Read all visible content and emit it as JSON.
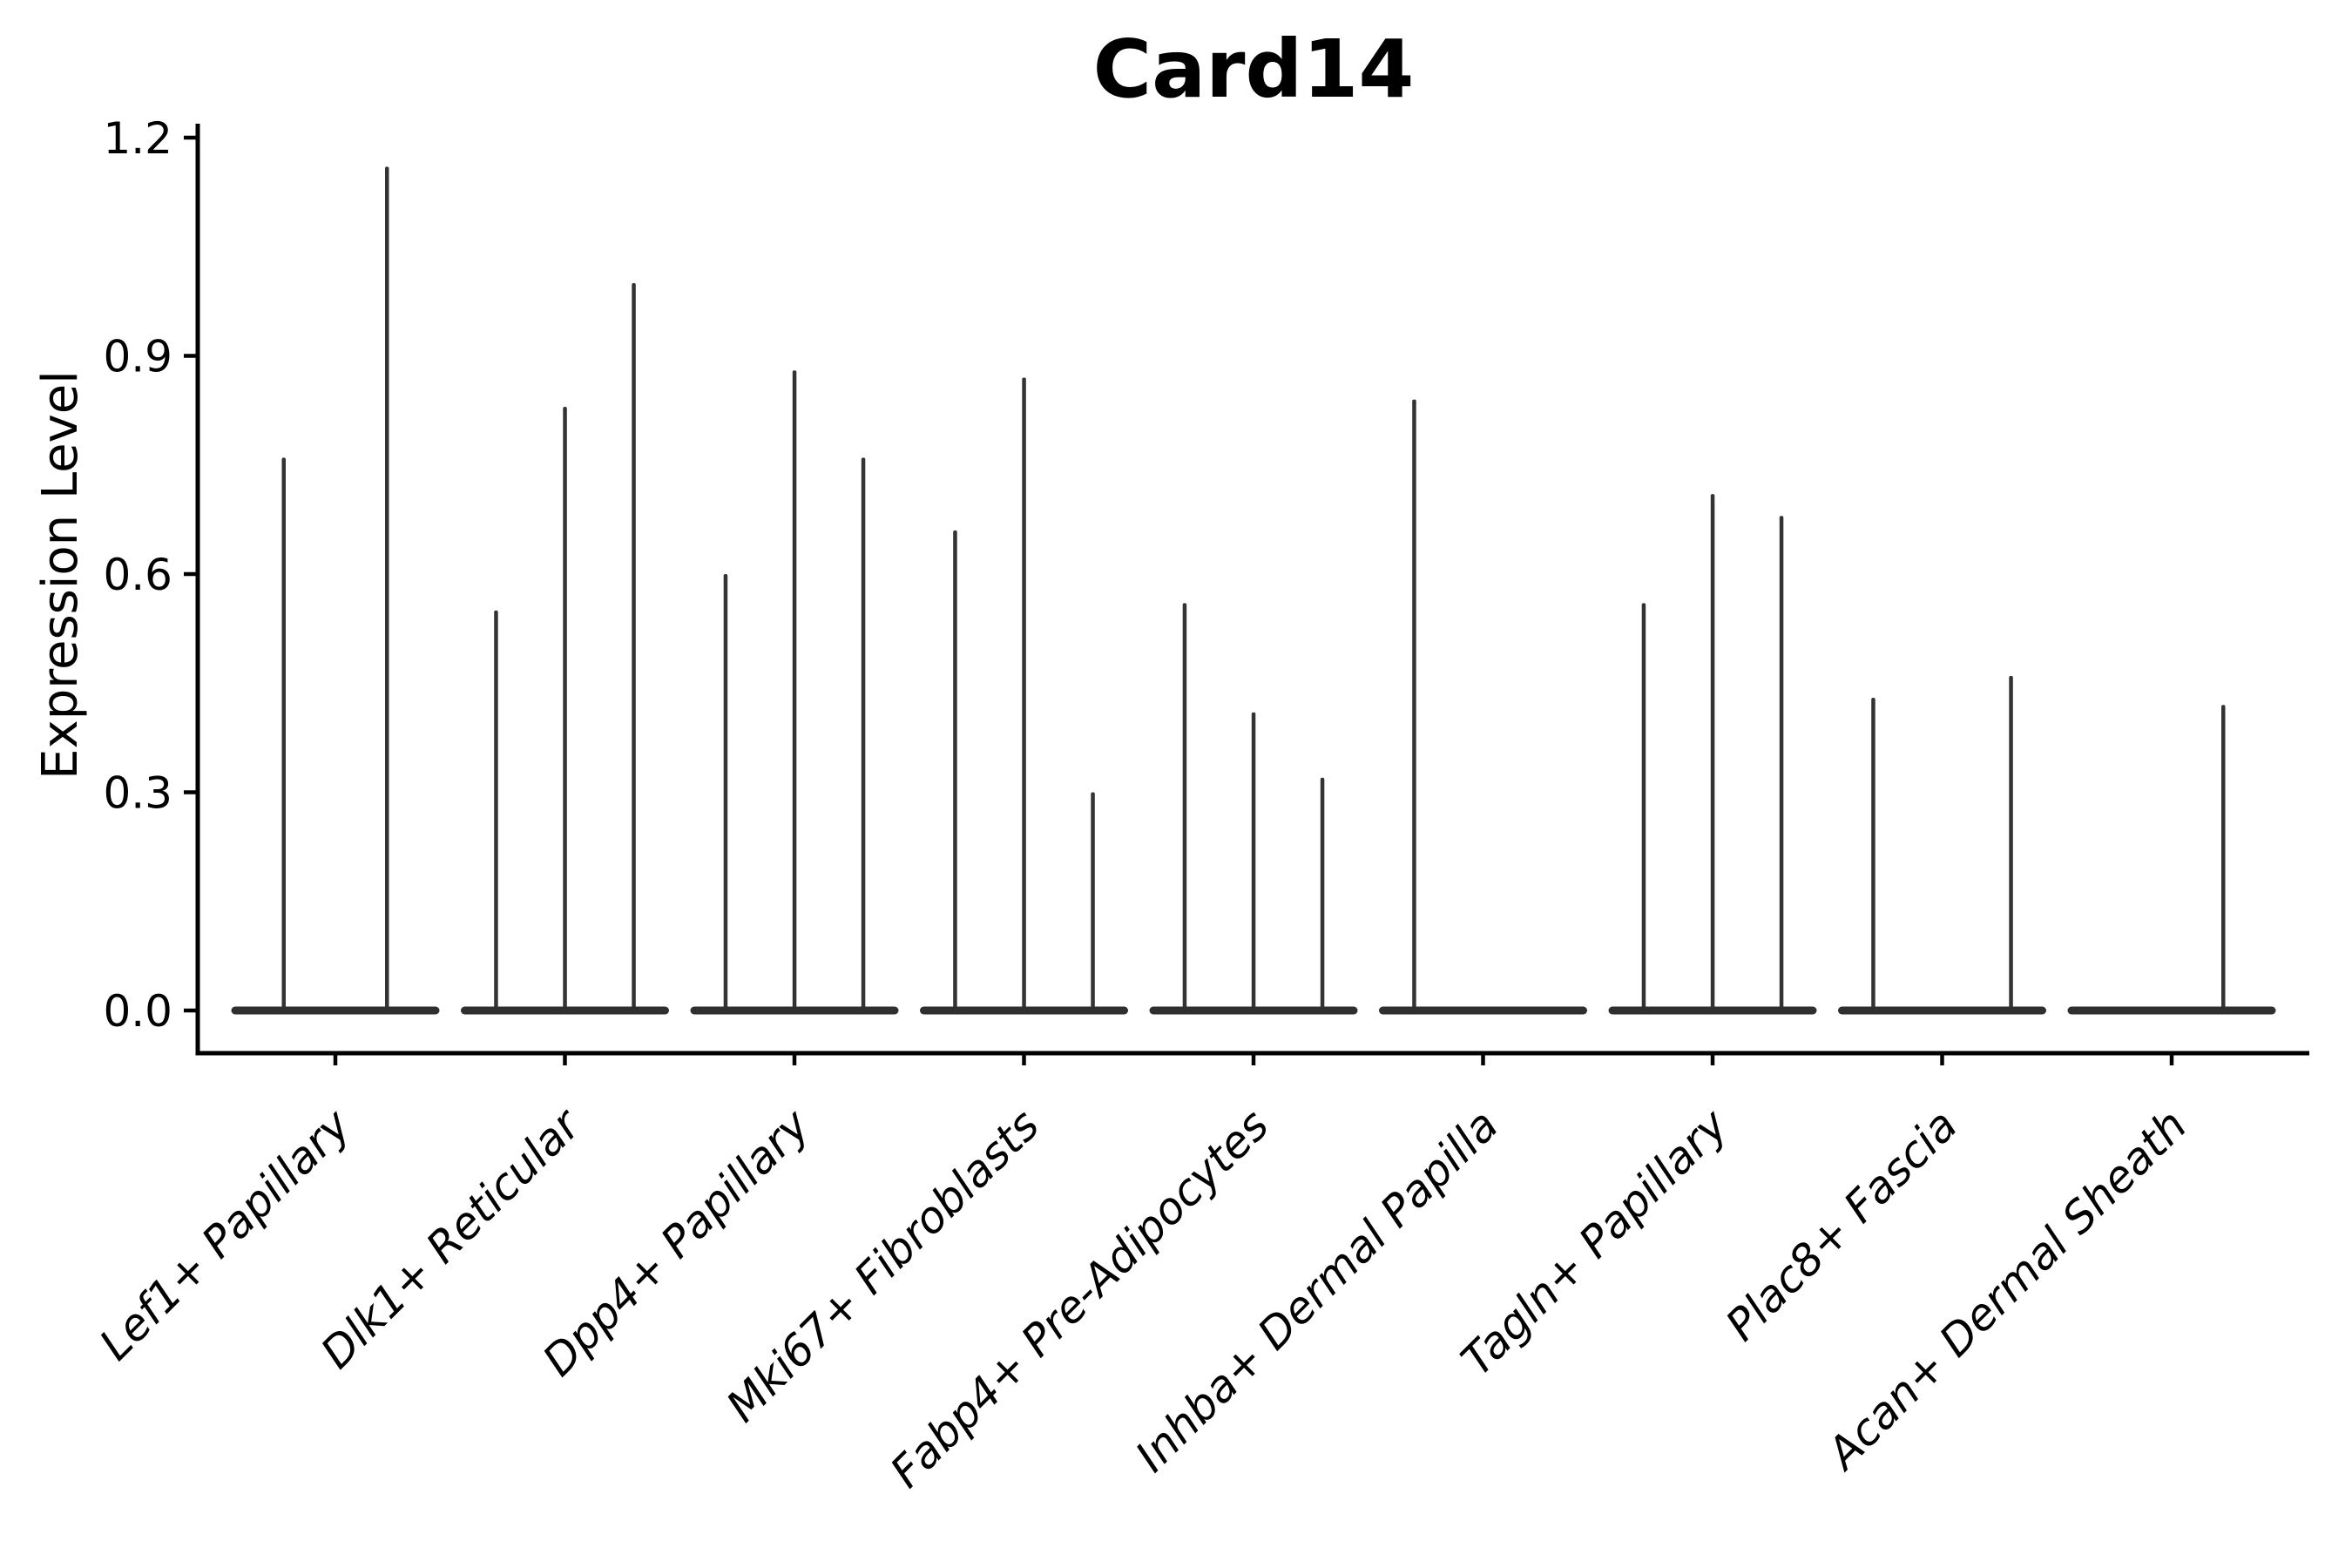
{
  "title": "Card14",
  "y_axis": {
    "label": "Expression Level",
    "tick_labels": [
      "0.0",
      "0.3",
      "0.6",
      "0.9",
      "1.2"
    ],
    "tick_values": [
      0.0,
      0.3,
      0.6,
      0.9,
      1.2
    ]
  },
  "x_axis": {
    "categories": [
      "Lef1+ Papillary",
      "Dlk1+ Reticular",
      "Dpp4+ Papillary",
      "Mki67+ Fibroblasts",
      "Fabp4+ Pre-Adipocytes",
      "Inhba+ Dermal Papilla",
      "Tagln+ Papillary",
      "Plac8+ Fascia",
      "Acan+ Dermal Sheath"
    ]
  },
  "colors": {
    "violin_spike": "#333333",
    "violin_base": "#2f2f2f",
    "axis": "#000000",
    "text": "#000000",
    "background": "#ffffff"
  },
  "chart_data": {
    "type": "violin",
    "title": "Card14",
    "xlabel": "",
    "ylabel": "Expression Level",
    "ylim": [
      -0.06,
      1.26
    ],
    "yticks": [
      0.0,
      0.3,
      0.6,
      0.9,
      1.2
    ],
    "grid": false,
    "legend": "none",
    "categories": [
      "Lef1+ Papillary",
      "Dlk1+ Reticular",
      "Dpp4+ Papillary",
      "Mki67+ Fibroblasts",
      "Fabp4+ Pre-Adipocytes",
      "Inhba+ Dermal Papilla",
      "Tagln+ Papillary",
      "Plac8+ Fascia",
      "Acan+ Dermal Sheath"
    ],
    "series": [
      {
        "category": "Lef1+ Papillary",
        "violins": [
          {
            "slot": -0.225,
            "max": 0.76
          },
          {
            "slot": 0.225,
            "max": 1.16
          }
        ]
      },
      {
        "category": "Dlk1+ Reticular",
        "violins": [
          {
            "slot": -0.3,
            "max": 0.55
          },
          {
            "slot": 0,
            "max": 0.83
          },
          {
            "slot": 0.3,
            "max": 1.0
          }
        ]
      },
      {
        "category": "Dpp4+ Papillary",
        "violins": [
          {
            "slot": -0.3,
            "max": 0.6
          },
          {
            "slot": 0,
            "max": 0.88
          },
          {
            "slot": 0.3,
            "max": 0.76
          }
        ]
      },
      {
        "category": "Mki67+ Fibroblasts",
        "violins": [
          {
            "slot": -0.3,
            "max": 0.66
          },
          {
            "slot": 0,
            "max": 0.87
          },
          {
            "slot": 0.3,
            "max": 0.3
          }
        ]
      },
      {
        "category": "Fabp4+ Pre-Adipocytes",
        "violins": [
          {
            "slot": -0.3,
            "max": 0.56
          },
          {
            "slot": 0,
            "max": 0.41
          },
          {
            "slot": 0.3,
            "max": 0.32
          }
        ]
      },
      {
        "category": "Inhba+ Dermal Papilla",
        "violins": [
          {
            "slot": -0.3,
            "max": 0.84
          }
        ]
      },
      {
        "category": "Tagln+ Papillary",
        "violins": [
          {
            "slot": -0.3,
            "max": 0.56
          },
          {
            "slot": 0,
            "max": 0.71
          },
          {
            "slot": 0.3,
            "max": 0.68
          }
        ]
      },
      {
        "category": "Plac8+ Fascia",
        "violins": [
          {
            "slot": -0.3,
            "max": 0.43
          },
          {
            "slot": 0.3,
            "max": 0.46
          }
        ]
      },
      {
        "category": "Acan+ Dermal Sheath",
        "violins": [
          {
            "slot": 0.225,
            "max": 0.42
          }
        ]
      }
    ]
  }
}
